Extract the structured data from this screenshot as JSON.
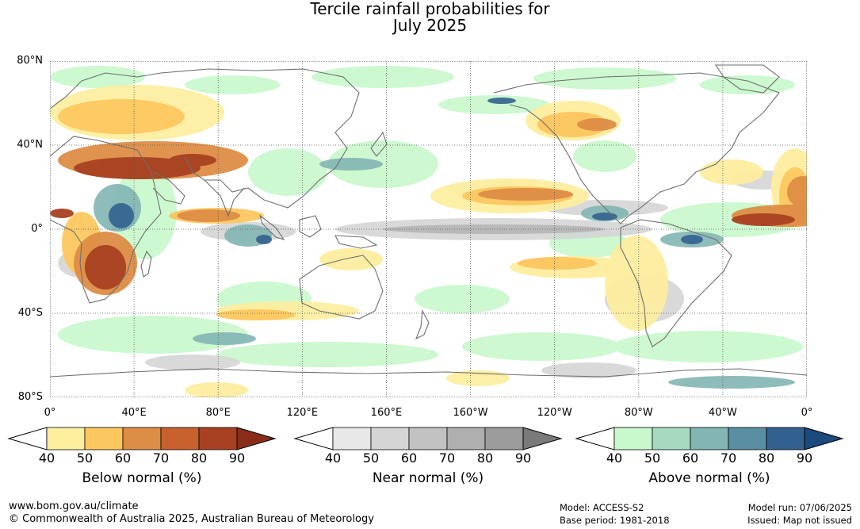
{
  "title": {
    "line1": "Tercile rainfall probabilities for",
    "line2": "July 2025"
  },
  "axes": {
    "lat_labels": [
      {
        "text": "80°N",
        "lat": 80
      },
      {
        "text": "40°N",
        "lat": 40
      },
      {
        "text": "0°",
        "lat": 0
      },
      {
        "text": "40°S",
        "lat": -40
      },
      {
        "text": "80°S",
        "lat": -80
      }
    ],
    "lon_labels": [
      {
        "text": "0°",
        "lon": 0
      },
      {
        "text": "40°E",
        "lon": 40
      },
      {
        "text": "80°E",
        "lon": 80
      },
      {
        "text": "120°E",
        "lon": 120
      },
      {
        "text": "160°E",
        "lon": 160
      },
      {
        "text": "160°W",
        "lon": 200
      },
      {
        "text": "120°W",
        "lon": 240
      },
      {
        "text": "80°W",
        "lon": 280
      },
      {
        "text": "40°W",
        "lon": 320
      },
      {
        "text": "0°",
        "lon": 360
      }
    ],
    "lat_range": [
      -80,
      80
    ],
    "lon_range": [
      0,
      360
    ],
    "grid": true
  },
  "legends": [
    {
      "id": "below",
      "label": "Below normal (%)",
      "ticks": [
        "40",
        "50",
        "60",
        "70",
        "80",
        "90"
      ],
      "colors": [
        "#fdeea0",
        "#fdc760",
        "#de8d45",
        "#c8612e",
        "#a84121",
        "#8b2c1a"
      ]
    },
    {
      "id": "near",
      "label": "Near normal (%)",
      "ticks": [
        "40",
        "50",
        "60",
        "70",
        "80",
        "90"
      ],
      "colors": [
        "#e8e8e8",
        "#d5d5d5",
        "#c2c2c2",
        "#afafaf",
        "#9c9c9c",
        "#7a7a7a"
      ]
    },
    {
      "id": "above",
      "label": "Above normal (%)",
      "ticks": [
        "40",
        "50",
        "60",
        "70",
        "80",
        "90"
      ],
      "colors": [
        "#c8f8cc",
        "#a7d9c0",
        "#82b5b3",
        "#5a8ea3",
        "#32618f",
        "#1a4a7e"
      ]
    }
  ],
  "footer": {
    "website": "www.bom.gov.au/climate",
    "copyright": "© Commonwealth of Australia 2025, Australian Bureau of Meteorology",
    "model": "Model: ACCESS-S2",
    "base_period": "Base period: 1981-2018",
    "model_run": "Model run: 07/06/2025",
    "issued": "Issued: Map not issued"
  },
  "colors": {
    "coastline": "#6e6e6e",
    "grid": "#555555"
  }
}
